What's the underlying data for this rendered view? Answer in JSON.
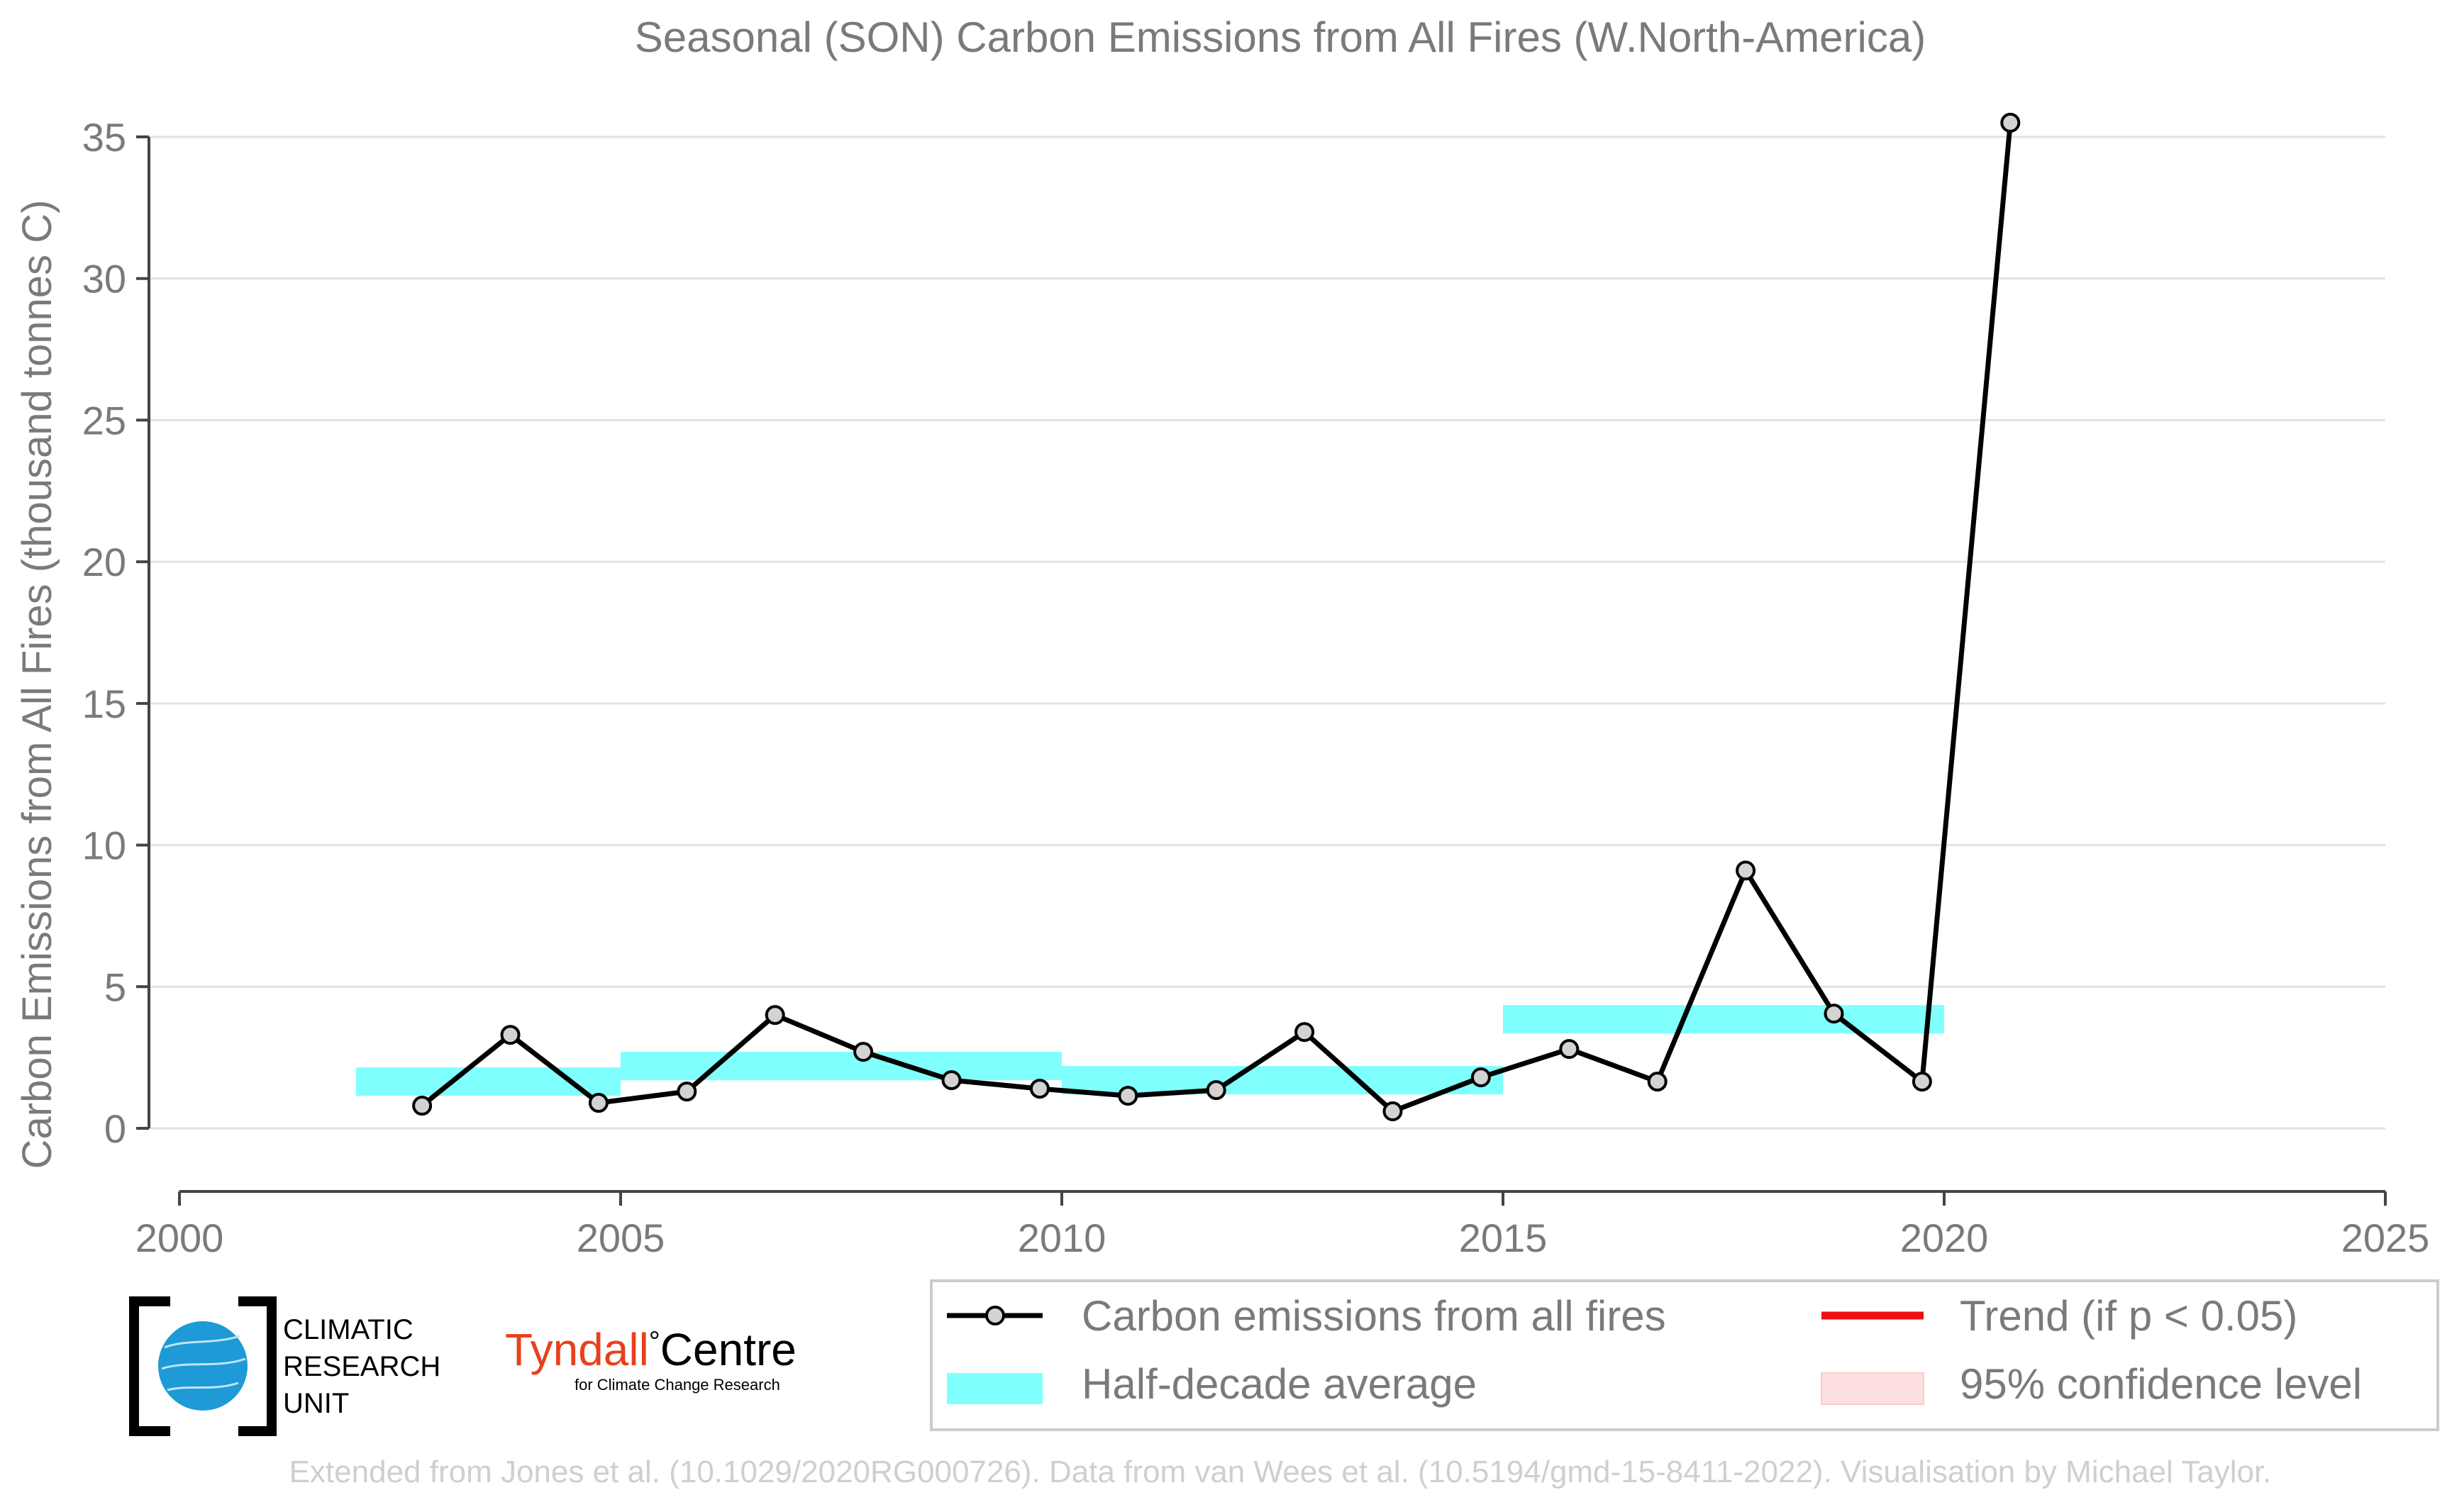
{
  "chart_data": {
    "type": "line",
    "title": "Seasonal (SON) Carbon Emissions from All Fires (W.North-America)",
    "xlabel": "",
    "ylabel": "Carbon Emissions from All Fires (thousand tonnes C)",
    "xlim": [
      2000,
      2025
    ],
    "ylim": [
      0,
      35
    ],
    "xticks": [
      2000,
      2005,
      2010,
      2015,
      2020,
      2025
    ],
    "yticks": [
      0,
      5,
      10,
      15,
      20,
      25,
      30,
      35
    ],
    "grid": "horizontal",
    "legend_placement": "bottom",
    "series": [
      {
        "name": "Carbon emissions from all fires",
        "kind": "line-markers",
        "color": "#000000",
        "marker_color": "#d3d3d3",
        "x": [
          2002.75,
          2003.75,
          2004.75,
          2005.75,
          2006.75,
          2007.75,
          2008.75,
          2009.75,
          2010.75,
          2011.75,
          2012.75,
          2013.75,
          2014.75,
          2015.75,
          2016.75,
          2017.75,
          2018.75,
          2019.75,
          2020.75
        ],
        "y": [
          0.8,
          3.3,
          0.9,
          1.3,
          4.0,
          2.7,
          1.7,
          1.4,
          1.15,
          1.35,
          3.4,
          0.6,
          1.8,
          2.8,
          1.65,
          9.1,
          4.05,
          1.65,
          35.5
        ]
      },
      {
        "name": "Half-decade average",
        "kind": "bands",
        "color": "#80ffff",
        "segments": [
          {
            "x0": 2002.0,
            "x1": 2005.0,
            "y": 1.65
          },
          {
            "x0": 2005.0,
            "x1": 2010.0,
            "y": 2.2
          },
          {
            "x0": 2010.0,
            "x1": 2015.0,
            "y": 1.7
          },
          {
            "x0": 2015.0,
            "x1": 2020.0,
            "y": 3.85
          }
        ]
      }
    ],
    "legend": [
      {
        "label": "Carbon emissions from all fires",
        "swatch": "line-marker",
        "color": "#000000"
      },
      {
        "label": "Trend (if p < 0.05)",
        "swatch": "line",
        "color": "#ee1111"
      },
      {
        "label": "Half-decade average",
        "swatch": "band",
        "color": "#80ffff"
      },
      {
        "label": "95% confidence level",
        "swatch": "band",
        "color": "#ffe0e0"
      }
    ]
  },
  "logos": {
    "cru": [
      "CLIMATIC",
      "RESEARCH",
      "UNIT"
    ],
    "tyndall_name": "Tyndall",
    "tyndall_degree": "°",
    "tyndall_centre": "Centre",
    "tyndall_sub": "for Climate Change Research"
  },
  "credit": "Extended from Jones et al. (10.1029/2020RG000726). Data from van Wees et al. (10.5194/gmd-15-8411-2022). Visualisation by Michael Taylor."
}
